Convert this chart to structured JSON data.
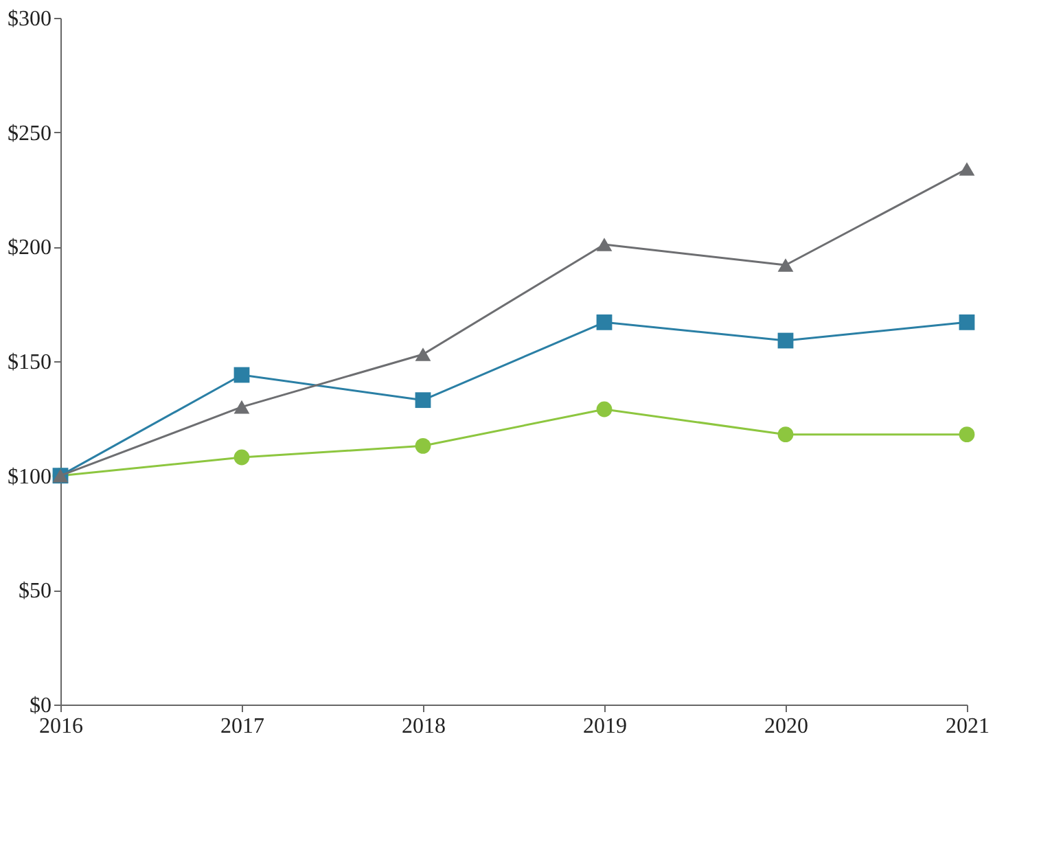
{
  "chart_data": {
    "type": "line",
    "x": [
      2016,
      2017,
      2018,
      2019,
      2020,
      2021
    ],
    "xlim": [
      2016,
      2021
    ],
    "xticks": [
      2016,
      2017,
      2018,
      2019,
      2020,
      2021
    ],
    "ylim": [
      0,
      300
    ],
    "yticks": [
      {
        "value": 0,
        "label": "$0"
      },
      {
        "value": 50,
        "label": "$50"
      },
      {
        "value": 100,
        "label": "$100"
      },
      {
        "value": 150,
        "label": "$150"
      },
      {
        "value": 200,
        "label": "$200"
      },
      {
        "value": 250,
        "label": "$250"
      },
      {
        "value": 300,
        "label": "$300"
      }
    ],
    "grid": false,
    "legend": false,
    "series": [
      {
        "color": "#8dc63f",
        "marker": "circle",
        "values": [
          100,
          108,
          113,
          129,
          118,
          118
        ]
      },
      {
        "color": "#2a7fa5",
        "marker": "square",
        "values": [
          100,
          144,
          133,
          167,
          159,
          167
        ]
      },
      {
        "color": "#6d6e71",
        "marker": "triangle",
        "values": [
          100,
          130,
          153,
          201,
          192,
          234
        ]
      }
    ]
  }
}
